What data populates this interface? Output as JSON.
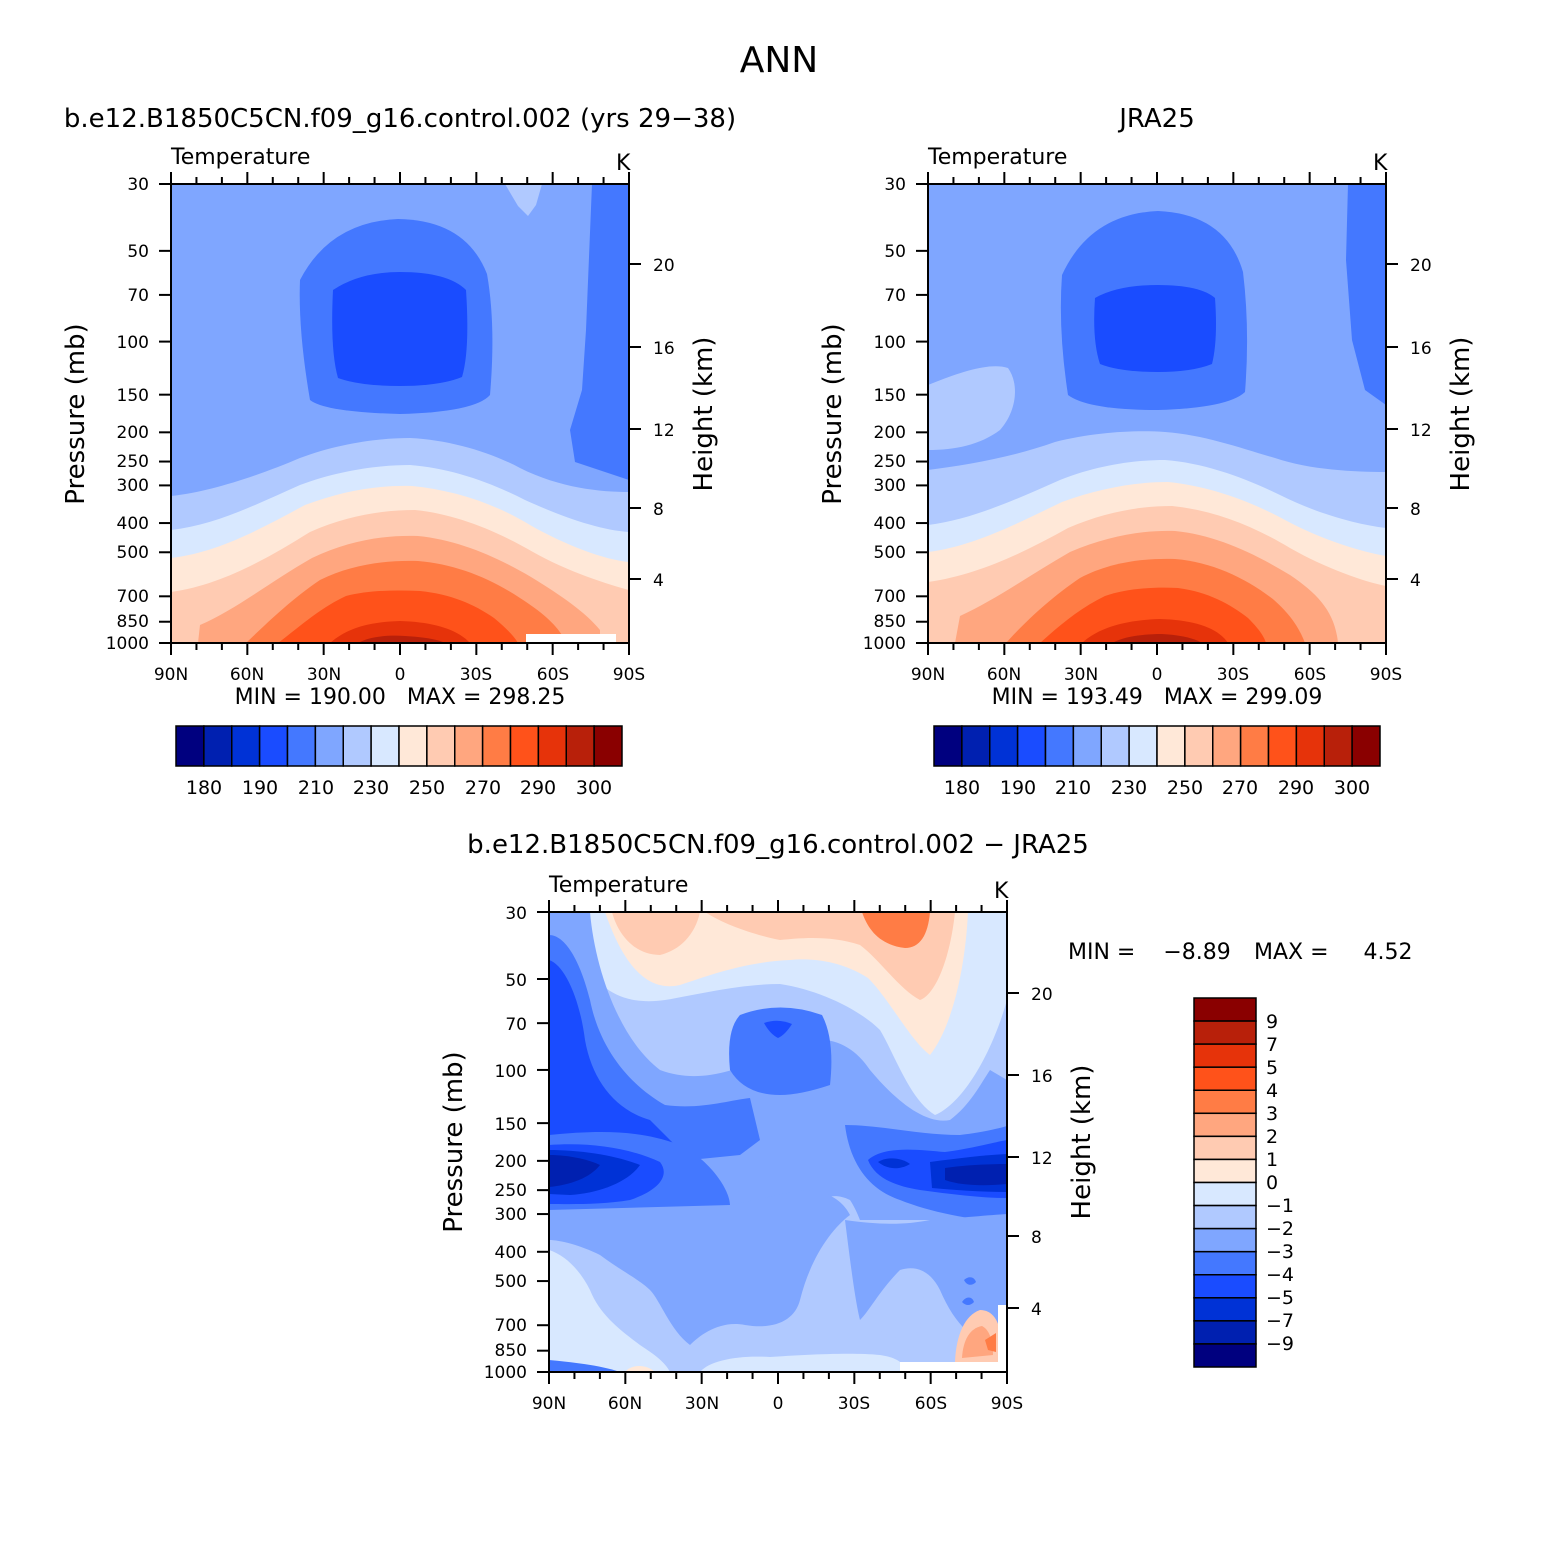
{
  "figure": {
    "title": "ANN"
  },
  "panels": [
    {
      "id": "model",
      "case_title": "b.e12.B1850C5CN.f09_g16.control.002 (yrs 29−38)",
      "variable": "Temperature",
      "units": "K",
      "stats": "MIN = 190.00   MAX = 298.25"
    },
    {
      "id": "obs",
      "case_title": "JRA25",
      "variable": "Temperature",
      "units": "K",
      "stats": "MIN = 193.49   MAX = 299.09"
    },
    {
      "id": "diff",
      "case_title": "b.e12.B1850C5CN.f09_g16.control.002 − JRA25",
      "variable": "Temperature",
      "units": "K",
      "stats_min": "MIN =    −8.89",
      "stats_max": "MAX =     4.52"
    }
  ],
  "axes": {
    "ylabel": "Pressure (mb)",
    "ylabel_right": "Height (km)",
    "x_ticks": [
      "90N",
      "60N",
      "30N",
      "0",
      "30S",
      "60S",
      "90S"
    ],
    "y_ticks": [
      "30",
      "50",
      "70",
      "100",
      "150",
      "200",
      "250",
      "300",
      "400",
      "500",
      "700",
      "850",
      "1000"
    ],
    "height_ticks": [
      "20",
      "16",
      "12",
      "8",
      "4"
    ]
  },
  "colorbars": {
    "absolute": {
      "colors": [
        "#00007f",
        "#0020b0",
        "#0032d6",
        "#1a4cff",
        "#4478ff",
        "#7fa6ff",
        "#b0c9ff",
        "#d8e8ff",
        "#ffe8d8",
        "#ffcbb2",
        "#ffa67f",
        "#ff7c45",
        "#ff521a",
        "#e6330a",
        "#b8200a",
        "#8a0000"
      ],
      "labels": [
        "180",
        "190",
        "210",
        "230",
        "250",
        "270",
        "290",
        "300"
      ]
    },
    "difference": {
      "colors": [
        "#8a0000",
        "#b8200a",
        "#e6330a",
        "#ff521a",
        "#ff7c45",
        "#ffa67f",
        "#ffcbb2",
        "#ffe8d8",
        "#d8e8ff",
        "#b0c9ff",
        "#7fa6ff",
        "#4478ff",
        "#1a4cff",
        "#0032d6",
        "#0020b0",
        "#00007f"
      ],
      "labels": [
        "9",
        "7",
        "5",
        "4",
        "3",
        "2",
        "1",
        "0",
        "−1",
        "−2",
        "−3",
        "−4",
        "−5",
        "−7",
        "−9"
      ]
    }
  },
  "chart_data": [
    {
      "type": "heatmap",
      "title": "b.e12.B1850C5CN.f09_g16.control.002 (yrs 29−38)",
      "variable": "Temperature",
      "units": "K",
      "x_range": [
        "90N",
        "90S"
      ],
      "y_range_mb": [
        30,
        1000
      ],
      "y_scale": "log",
      "min": 190.0,
      "max": 298.25,
      "contour_levels": [
        180,
        185,
        190,
        200,
        210,
        220,
        230,
        240,
        250,
        260,
        270,
        280,
        290,
        295,
        300
      ]
    },
    {
      "type": "heatmap",
      "title": "JRA25",
      "variable": "Temperature",
      "units": "K",
      "x_range": [
        "90N",
        "90S"
      ],
      "y_range_mb": [
        30,
        1000
      ],
      "y_scale": "log",
      "min": 193.49,
      "max": 299.09,
      "contour_levels": [
        180,
        185,
        190,
        200,
        210,
        220,
        230,
        240,
        250,
        260,
        270,
        280,
        290,
        295,
        300
      ]
    },
    {
      "type": "heatmap",
      "title": "b.e12.B1850C5CN.f09_g16.control.002 − JRA25",
      "variable": "Temperature",
      "units": "K",
      "x_range": [
        "90N",
        "90S"
      ],
      "y_range_mb": [
        30,
        1000
      ],
      "y_scale": "log",
      "min": -8.89,
      "max": 4.52,
      "contour_levels": [
        -9,
        -7,
        -5,
        -4,
        -3,
        -2,
        -1,
        0,
        1,
        2,
        3,
        4,
        5,
        7,
        9
      ]
    }
  ]
}
